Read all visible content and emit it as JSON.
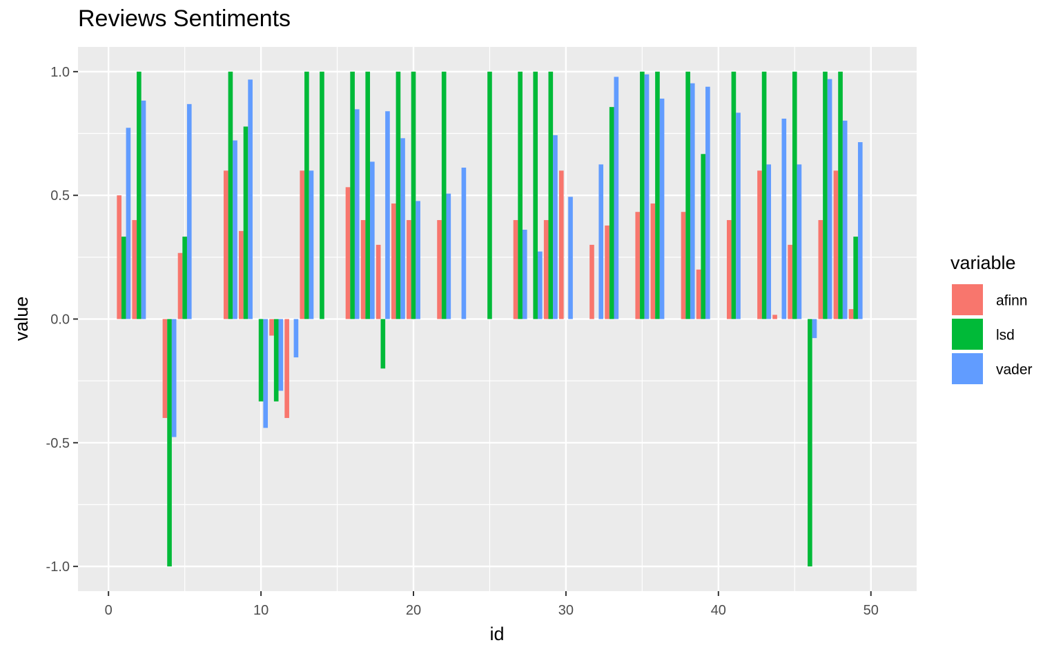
{
  "chart_data": {
    "type": "bar",
    "title": "Reviews Sentiments",
    "xlabel": "id",
    "ylabel": "value",
    "xlim": [
      -2,
      53
    ],
    "ylim": [
      -1.1,
      1.1
    ],
    "x_ticks": [
      0,
      10,
      20,
      30,
      40,
      50
    ],
    "x_tick_labels": [
      "0",
      "10",
      "20",
      "30",
      "40",
      "50"
    ],
    "y_ticks": [
      -1.0,
      -0.5,
      0.0,
      0.5,
      1.0
    ],
    "y_tick_labels": [
      "-1.0",
      "-0.5",
      "0.0",
      "0.5",
      "1.0"
    ],
    "grid": true,
    "legend": {
      "title": "variable",
      "position": "right"
    },
    "ids": [
      1,
      2,
      3,
      4,
      5,
      6,
      7,
      8,
      9,
      10,
      11,
      12,
      13,
      14,
      15,
      16,
      17,
      18,
      19,
      20,
      21,
      22,
      23,
      24,
      25,
      26,
      27,
      28,
      29,
      30,
      31,
      32,
      33,
      34,
      35,
      36,
      37,
      38,
      39,
      40,
      41,
      42,
      43,
      44,
      45,
      46,
      47,
      48,
      49,
      50
    ],
    "series": [
      {
        "name": "afinn",
        "color": "#F8766D",
        "values": [
          0.5,
          0.4,
          null,
          -0.4,
          0.267,
          null,
          null,
          0.6,
          0.356,
          null,
          -0.067,
          -0.4,
          0.6,
          null,
          null,
          0.533,
          0.4,
          0.3,
          0.467,
          0.4,
          null,
          0.4,
          null,
          null,
          null,
          null,
          0.4,
          null,
          0.4,
          0.6,
          null,
          0.3,
          0.378,
          null,
          0.433,
          0.467,
          null,
          0.433,
          0.2,
          null,
          0.4,
          null,
          0.6,
          0.017,
          0.3,
          null,
          0.4,
          0.6,
          0.04,
          null
        ]
      },
      {
        "name": "lsd",
        "color": "#00BA38",
        "values": [
          0.333,
          1.0,
          null,
          -1.0,
          0.333,
          null,
          null,
          1.0,
          0.778,
          -0.333,
          -0.333,
          null,
          1.0,
          1.0,
          null,
          1.0,
          1.0,
          -0.2,
          1.0,
          1.0,
          null,
          1.0,
          null,
          null,
          1.0,
          null,
          1.0,
          1.0,
          1.0,
          null,
          null,
          null,
          0.857,
          null,
          1.0,
          1.0,
          null,
          1.0,
          0.667,
          null,
          1.0,
          null,
          1.0,
          null,
          1.0,
          -1.0,
          1.0,
          1.0,
          0.333,
          null
        ]
      },
      {
        "name": "vader",
        "color": "#619CFF",
        "values": [
          0.773,
          0.883,
          null,
          -0.477,
          0.869,
          null,
          null,
          0.722,
          0.968,
          -0.44,
          -0.29,
          -0.155,
          0.6,
          null,
          null,
          0.848,
          0.636,
          0.84,
          0.731,
          0.477,
          null,
          0.507,
          0.612,
          null,
          null,
          null,
          0.361,
          0.273,
          0.743,
          0.494,
          null,
          0.625,
          0.979,
          null,
          0.989,
          0.891,
          null,
          0.953,
          0.939,
          null,
          0.834,
          null,
          0.625,
          0.81,
          0.625,
          -0.077,
          0.97,
          0.802,
          0.715,
          null
        ]
      }
    ]
  }
}
